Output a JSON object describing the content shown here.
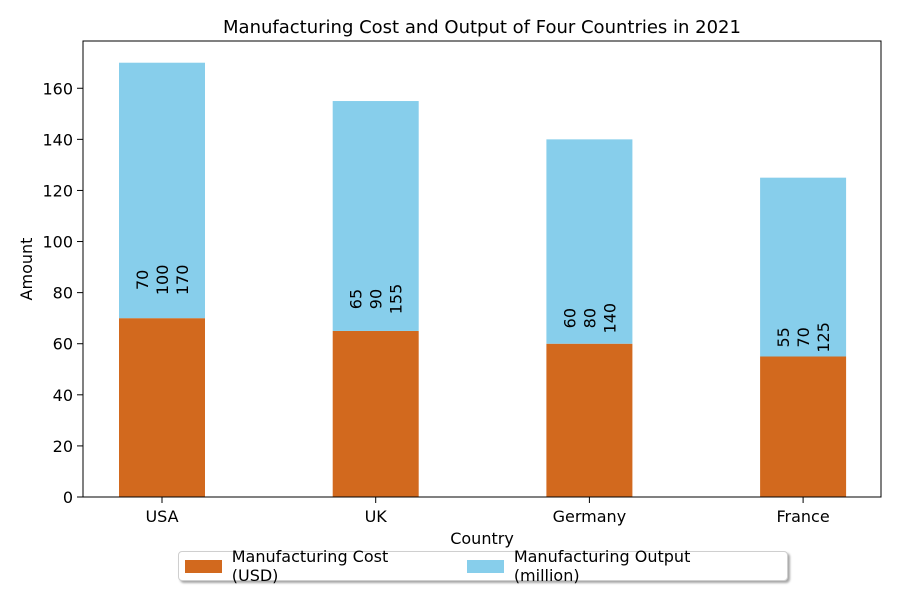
{
  "chart_data": {
    "type": "bar",
    "stacked": true,
    "title": "Manufacturing Cost and Output of Four Countries in 2021",
    "xlabel": "Country",
    "ylabel": "Amount",
    "categories": [
      "USA",
      "UK",
      "Germany",
      "France"
    ],
    "series": [
      {
        "name": "Manufacturing Cost (USD)",
        "values": [
          70,
          65,
          60,
          55
        ],
        "color": "#d2691e"
      },
      {
        "name": "Manufacturing Output (million)",
        "values": [
          100,
          90,
          80,
          70
        ],
        "color": "#87ceeb"
      }
    ],
    "bar_labels": [
      [
        "70",
        "100",
        "170"
      ],
      [
        "65",
        "90",
        "155"
      ],
      [
        "60",
        "80",
        "140"
      ],
      [
        "55",
        "70",
        "125"
      ]
    ],
    "yticks": [
      0,
      20,
      40,
      60,
      80,
      100,
      120,
      140,
      160
    ],
    "ylim": [
      0,
      178.5
    ],
    "grid": false,
    "legend_position": "bottom-center"
  }
}
